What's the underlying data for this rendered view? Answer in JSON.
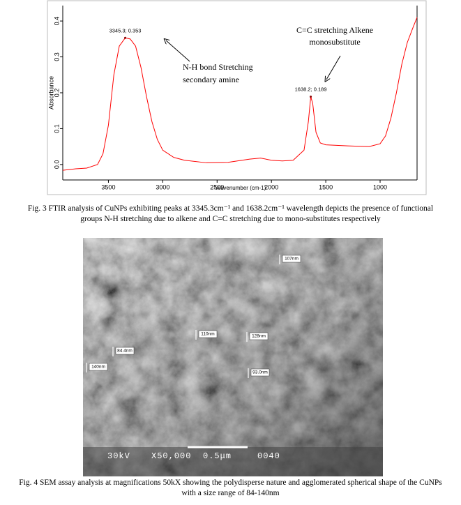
{
  "chart_data": {
    "type": "line",
    "x_label": "Wavenumber (cm-1)",
    "y_label": "Absorbance",
    "color": "#ff0000",
    "x": [
      3920,
      3800,
      3700,
      3600,
      3550,
      3500,
      3450,
      3400,
      3345.3,
      3300,
      3250,
      3200,
      3150,
      3100,
      3050,
      3000,
      2900,
      2800,
      2600,
      2400,
      2200,
      2100,
      2000,
      1900,
      1800,
      1700,
      1660,
      1638.2,
      1620,
      1590,
      1550,
      1500,
      1300,
      1100,
      1000,
      950,
      900,
      850,
      800,
      750,
      700,
      660
    ],
    "values": [
      -0.016,
      -0.012,
      -0.01,
      0.0,
      0.03,
      0.11,
      0.25,
      0.33,
      0.353,
      0.35,
      0.33,
      0.27,
      0.19,
      0.12,
      0.07,
      0.04,
      0.02,
      0.012,
      0.005,
      0.006,
      0.015,
      0.018,
      0.012,
      0.01,
      0.012,
      0.04,
      0.12,
      0.189,
      0.17,
      0.09,
      0.06,
      0.055,
      0.052,
      0.05,
      0.058,
      0.08,
      0.13,
      0.2,
      0.28,
      0.34,
      0.38,
      0.41
    ],
    "xlim": [
      3920,
      660
    ],
    "ylim": [
      -0.043,
      0.443
    ],
    "xticks": [
      3500,
      3000,
      2500,
      2000,
      1500,
      1000
    ],
    "yticks": [
      {
        "value": 0,
        "label": "0.0"
      },
      0.1,
      0.2,
      0.3,
      0.4
    ],
    "peaks": [
      {
        "x": 3345.3,
        "y": 0.353,
        "label": "3345.3; 0.353"
      },
      {
        "x": 1638.2,
        "y": 0.189,
        "label": "1638.2; 0.189"
      }
    ],
    "annotations": [
      [
        "N-H bond Stretching",
        "secondary amine"
      ],
      [
        "C=C stretching Alkene",
        "monosubstitute"
      ]
    ]
  },
  "figure3_caption": [
    "Fig. 3 FTIR analysis of CuNPs exhibiting peaks at 3345.3cm⁻¹ and 1638.2cm⁻¹ wavelength depicts the presence of functional",
    "groups N-H stretching due to alkene and C=C stretching due to mono-substitutes respectively"
  ],
  "sem_image": {
    "measurements": [
      "107nm",
      "110nm",
      "128nm",
      "84.4nm",
      "140nm",
      "93.0nm"
    ],
    "info": [
      "30kV",
      "X50,000",
      "0.5μm",
      "0040"
    ]
  },
  "figure4_caption": [
    "Fig. 4 SEM assay analysis at magnifications 50kX showing the polydisperse nature and agglomerated spherical shape of the CuNPs",
    "with a size range of 84-140nm"
  ]
}
